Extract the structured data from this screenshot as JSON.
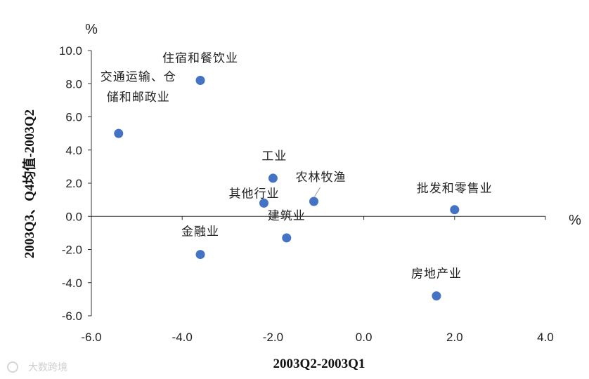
{
  "chart_data": {
    "type": "scatter",
    "xlabel": "2003Q2-2003Q1",
    "ylabel": "2003Q3、Q4均值-2003Q2",
    "x_unit": "%",
    "y_unit": "%",
    "xlim": [
      -6.0,
      4.0
    ],
    "ylim": [
      -6.0,
      10.0
    ],
    "x_ticks": [
      "-6.0",
      "-4.0",
      "-2.0",
      "0.0",
      "2.0",
      "4.0"
    ],
    "y_ticks": [
      "10.0",
      "8.0",
      "6.0",
      "4.0",
      "2.0",
      "0.0",
      "-2.0",
      "-4.0",
      "-6.0"
    ],
    "grid": false,
    "marker_color": "#4472c4",
    "points": [
      {
        "label": "住宿和餐饮业",
        "x": -3.6,
        "y": 8.2
      },
      {
        "label": "交通运输、仓储和邮政业",
        "label_lines": [
          "交通运输、仓",
          "储和邮政业"
        ],
        "x": -5.4,
        "y": 5.0
      },
      {
        "label": "工业",
        "x": -2.0,
        "y": 2.3
      },
      {
        "label": "农林牧渔",
        "x": -1.1,
        "y": 0.9
      },
      {
        "label": "其他行业",
        "x": -2.2,
        "y": 0.8
      },
      {
        "label": "批发和零售业",
        "x": 2.0,
        "y": 0.4
      },
      {
        "label": "建筑业",
        "x": -1.7,
        "y": -1.3
      },
      {
        "label": "金融业",
        "x": -3.6,
        "y": -2.3
      },
      {
        "label": "房地产业",
        "x": 1.6,
        "y": -4.8
      }
    ]
  },
  "watermark": "大数跨境"
}
